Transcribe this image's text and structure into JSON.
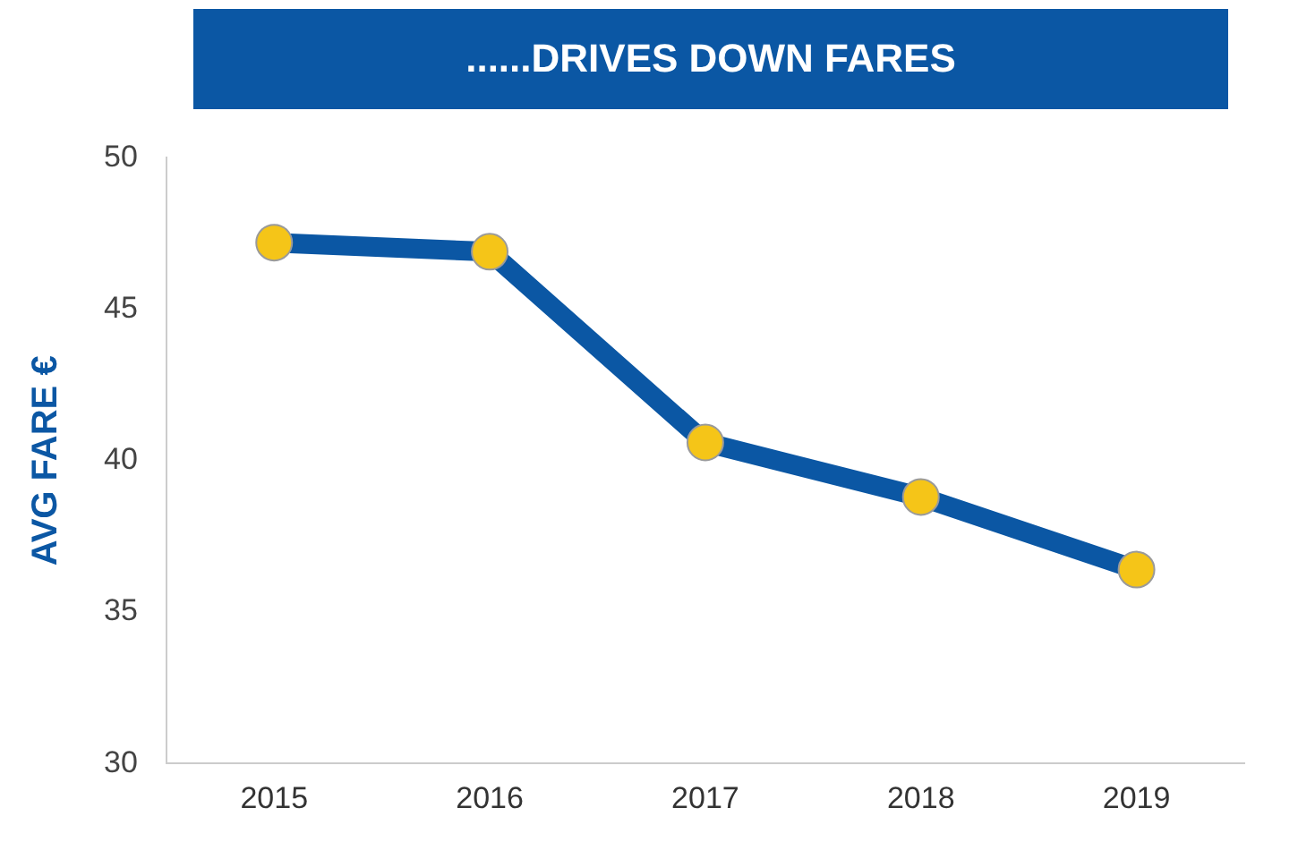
{
  "chart_data": {
    "type": "line",
    "title": "......DRIVES DOWN FARES",
    "ylabel": "AVG FARE €",
    "categories": [
      "2015",
      "2016",
      "2017",
      "2018",
      "2019"
    ],
    "series": [
      {
        "color": "#0b57a4",
        "colors": [
          "#f5c518",
          "#f5c518",
          "#f5c518",
          "#f5c518",
          "#f5c518"
        ],
        "values": [
          47.2,
          46.9,
          40.6,
          38.8,
          36.4
        ]
      }
    ],
    "ylim": [
      30,
      50
    ],
    "yticks": [
      30,
      35,
      40,
      45,
      50
    ],
    "grid": false,
    "legend": false,
    "marker": "circle",
    "line_style": "solid"
  }
}
